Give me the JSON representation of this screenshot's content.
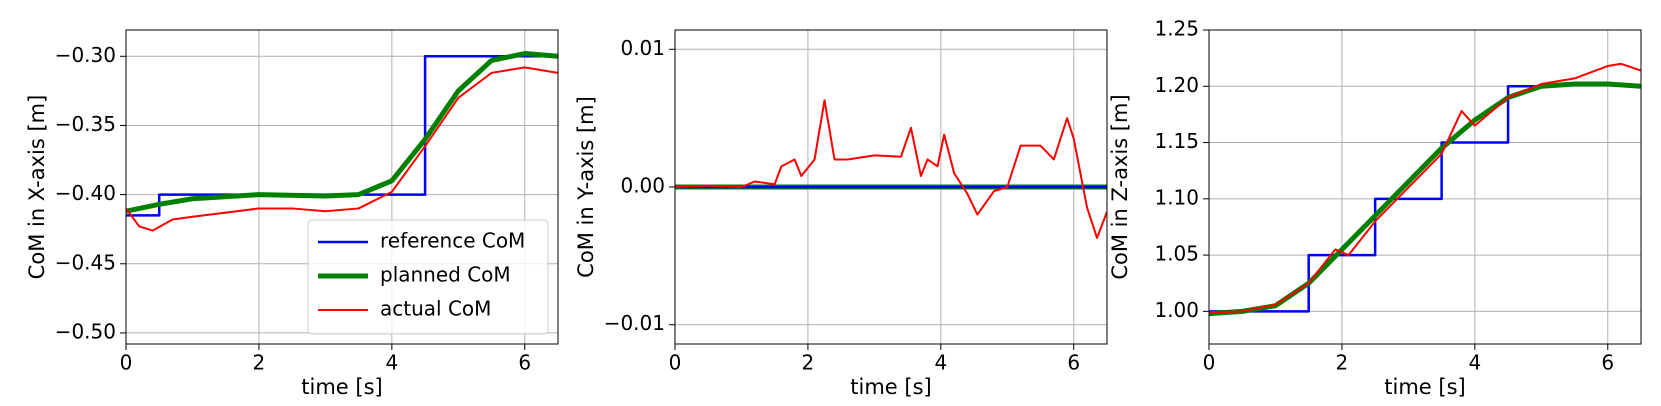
{
  "chart_data": [
    {
      "type": "line",
      "xlabel": "time [s]",
      "ylabel": "CoM in X-axis [m]",
      "xlim": [
        0,
        6.5
      ],
      "ylim": [
        -0.508,
        -0.281
      ],
      "xticks": [
        0,
        2,
        4,
        6
      ],
      "yticks": [
        {
          "value": -0.5,
          "label": "−0.50"
        },
        {
          "value": -0.45,
          "label": "−0.45"
        },
        {
          "value": -0.4,
          "label": "−0.40"
        },
        {
          "value": -0.35,
          "label": "−0.35"
        },
        {
          "value": -0.3,
          "label": "−0.30"
        }
      ],
      "grid": true,
      "legend": "lower right",
      "series": [
        {
          "name": "reference CoM",
          "color": "#0000ff",
          "width": 2.5,
          "x": [
            0,
            0.5,
            0.5,
            4.5,
            4.5,
            6.5
          ],
          "values": [
            -0.415,
            -0.415,
            -0.4,
            -0.4,
            -0.3,
            -0.3
          ]
        },
        {
          "name": "planned CoM",
          "color": "#008000",
          "width": 5,
          "x": [
            0,
            0.5,
            1,
            2,
            3,
            3.5,
            4,
            4.5,
            5,
            5.5,
            6,
            6.5
          ],
          "values": [
            -0.412,
            -0.407,
            -0.403,
            -0.4,
            -0.401,
            -0.4,
            -0.39,
            -0.36,
            -0.325,
            -0.303,
            -0.298,
            -0.3
          ]
        },
        {
          "name": "actual CoM",
          "color": "#ff0000",
          "width": 2,
          "x": [
            0,
            0.2,
            0.4,
            0.7,
            1,
            1.5,
            2,
            2.5,
            3,
            3.5,
            4,
            4.5,
            5,
            5.5,
            6,
            6.5
          ],
          "values": [
            -0.41,
            -0.423,
            -0.426,
            -0.418,
            -0.416,
            -0.413,
            -0.41,
            -0.41,
            -0.412,
            -0.41,
            -0.398,
            -0.365,
            -0.33,
            -0.312,
            -0.308,
            -0.312
          ]
        }
      ]
    },
    {
      "type": "line",
      "xlabel": "time [s]",
      "ylabel": "CoM in Y-axis [m]",
      "xlim": [
        0,
        6.5
      ],
      "ylim": [
        -0.0114,
        0.0114
      ],
      "xticks": [
        0,
        2,
        4,
        6
      ],
      "yticks": [
        {
          "value": -0.01,
          "label": "−0.01"
        },
        {
          "value": 0,
          "label": "0.00"
        },
        0.01
      ],
      "grid": true,
      "series": [
        {
          "color": "#008000",
          "width": 5,
          "x": [
            0,
            6.5
          ],
          "values": [
            0,
            0
          ]
        },
        {
          "color": "#0000ff",
          "width": 2.5,
          "x": [
            0,
            6.5
          ],
          "values": [
            0,
            0
          ]
        },
        {
          "color": "#ff0000",
          "width": 2,
          "x": [
            0,
            0.5,
            1,
            1.2,
            1.5,
            1.6,
            1.8,
            1.9,
            2.1,
            2.25,
            2.4,
            2.6,
            3,
            3.4,
            3.55,
            3.7,
            3.8,
            3.95,
            4.05,
            4.2,
            4.4,
            4.55,
            4.8,
            5,
            5.2,
            5.5,
            5.7,
            5.9,
            6,
            6.2,
            6.35,
            6.5
          ],
          "values": [
            0,
            0.0001,
            0,
            0.0004,
            0.0002,
            0.0015,
            0.002,
            0.0008,
            0.002,
            0.0063,
            0.002,
            0.002,
            0.0023,
            0.0022,
            0.0043,
            0.0008,
            0.002,
            0.0015,
            0.0038,
            0.001,
            -0.0005,
            -0.002,
            -0.0003,
            0,
            0.003,
            0.003,
            0.002,
            0.005,
            0.0035,
            -0.0015,
            -0.0037,
            -0.0018
          ]
        }
      ]
    },
    {
      "type": "line",
      "xlabel": "time [s]",
      "ylabel": "CoM in Z-axis [m]",
      "xlim": [
        0,
        6.5
      ],
      "ylim": [
        0.971,
        1.25
      ],
      "xticks": [
        0,
        2,
        4,
        6
      ],
      "yticks": [
        {
          "value": 1,
          "label": "1.00"
        },
        1.05,
        {
          "value": 1.1,
          "label": "1.10"
        },
        1.15,
        {
          "value": 1.2,
          "label": "1.20"
        },
        1.25
      ],
      "grid": true,
      "series": [
        {
          "color": "#0000ff",
          "width": 2.5,
          "x": [
            0,
            1.5,
            1.5,
            2.5,
            2.5,
            3.5,
            3.5,
            4.5,
            4.5,
            5.2
          ],
          "values": [
            1,
            1,
            1.05,
            1.05,
            1.1,
            1.1,
            1.15,
            1.15,
            1.2,
            1.2
          ]
        },
        {
          "color": "#008000",
          "width": 5,
          "x": [
            0,
            0.5,
            1,
            1.5,
            2,
            2.5,
            3,
            3.5,
            4,
            4.5,
            5,
            5.5,
            6,
            6.5
          ],
          "values": [
            0.998,
            1,
            1.005,
            1.025,
            1.055,
            1.085,
            1.115,
            1.145,
            1.17,
            1.19,
            1.2,
            1.202,
            1.202,
            1.2
          ]
        },
        {
          "color": "#ff0000",
          "width": 2,
          "x": [
            0,
            0.5,
            1,
            1.5,
            1.9,
            2.1,
            2.5,
            3,
            3.5,
            3.8,
            4,
            4.5,
            5,
            5.5,
            6,
            6.2,
            6.5
          ],
          "values": [
            0.999,
            1,
            1.006,
            1.025,
            1.055,
            1.05,
            1.08,
            1.11,
            1.14,
            1.178,
            1.165,
            1.19,
            1.202,
            1.207,
            1.218,
            1.22,
            1.214
          ]
        }
      ]
    }
  ]
}
